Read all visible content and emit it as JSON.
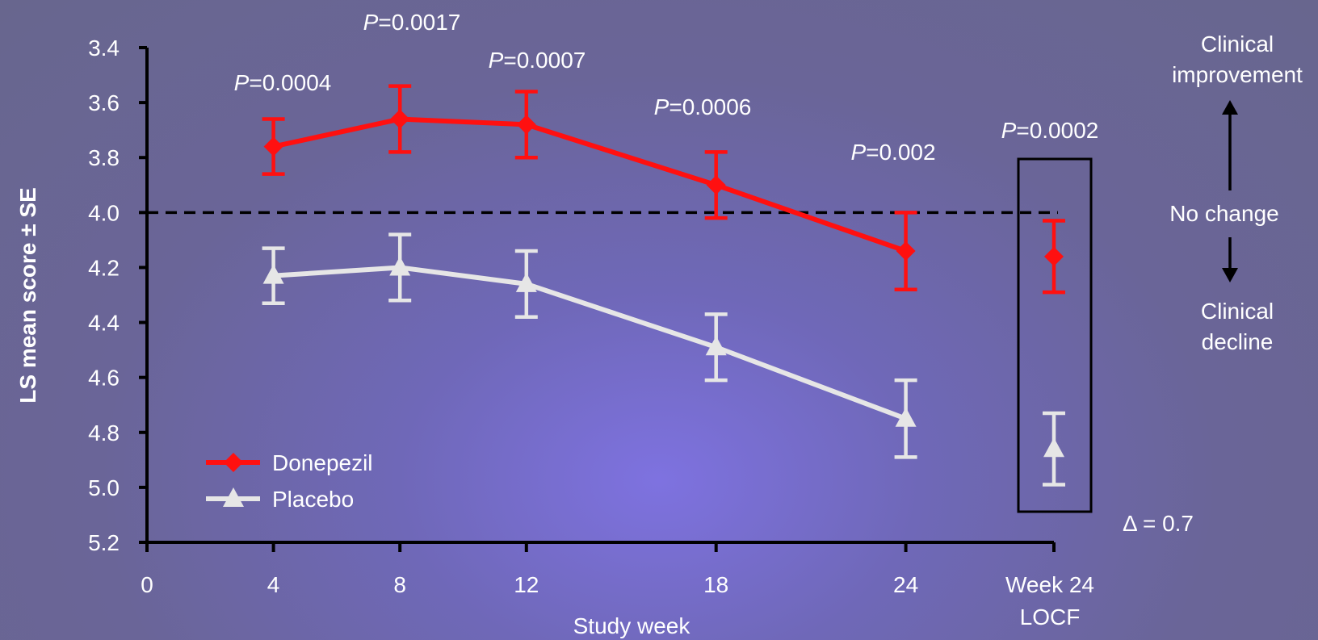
{
  "chart_data": {
    "type": "line",
    "title": "",
    "xlabel": "Study week",
    "ylabel": "LS mean score ± SE",
    "y_inverted": true,
    "ylim": [
      5.2,
      3.4
    ],
    "y_ticks": [
      "3.4",
      "3.6",
      "3.8",
      "4.0",
      "4.2",
      "4.4",
      "4.6",
      "4.8",
      "5.0",
      "5.2"
    ],
    "x_ticks": [
      "0",
      "4",
      "8",
      "12",
      "18",
      "24"
    ],
    "x_extra_tick": [
      "Week 24",
      "LOCF"
    ],
    "x": [
      4,
      8,
      12,
      18,
      24
    ],
    "reference_line": 4.0,
    "series": [
      {
        "name": "Donepezil",
        "color": "#ff1010",
        "marker": "diamond",
        "values": [
          3.76,
          3.66,
          3.68,
          3.9,
          4.14
        ],
        "se": [
          0.1,
          0.12,
          0.12,
          0.12,
          0.14
        ],
        "locf": {
          "value": 4.16,
          "se": 0.13
        }
      },
      {
        "name": "Placebo",
        "color": "#e6e6e6",
        "marker": "triangle",
        "values": [
          4.23,
          4.2,
          4.26,
          4.49,
          4.75
        ],
        "se": [
          0.1,
          0.12,
          0.12,
          0.12,
          0.14
        ],
        "locf": {
          "value": 4.86,
          "se": 0.13
        }
      }
    ],
    "p_values": [
      {
        "prefix": "P",
        "text": "=0.0004"
      },
      {
        "prefix": "P",
        "text": "=0.0017"
      },
      {
        "prefix": "P",
        "text": "=0.0007"
      },
      {
        "prefix": "P",
        "text": "=0.0006"
      },
      {
        "prefix": "P",
        "text": "=0.002"
      },
      {
        "prefix": "P",
        "text": "=0.0002"
      }
    ],
    "delta_label": "Δ = 0.7",
    "direction_labels": {
      "up": [
        "Clinical",
        "improvement"
      ],
      "middle": "No change",
      "down": [
        "Clinical",
        "decline"
      ]
    },
    "legend_placement": "bottom-left"
  }
}
